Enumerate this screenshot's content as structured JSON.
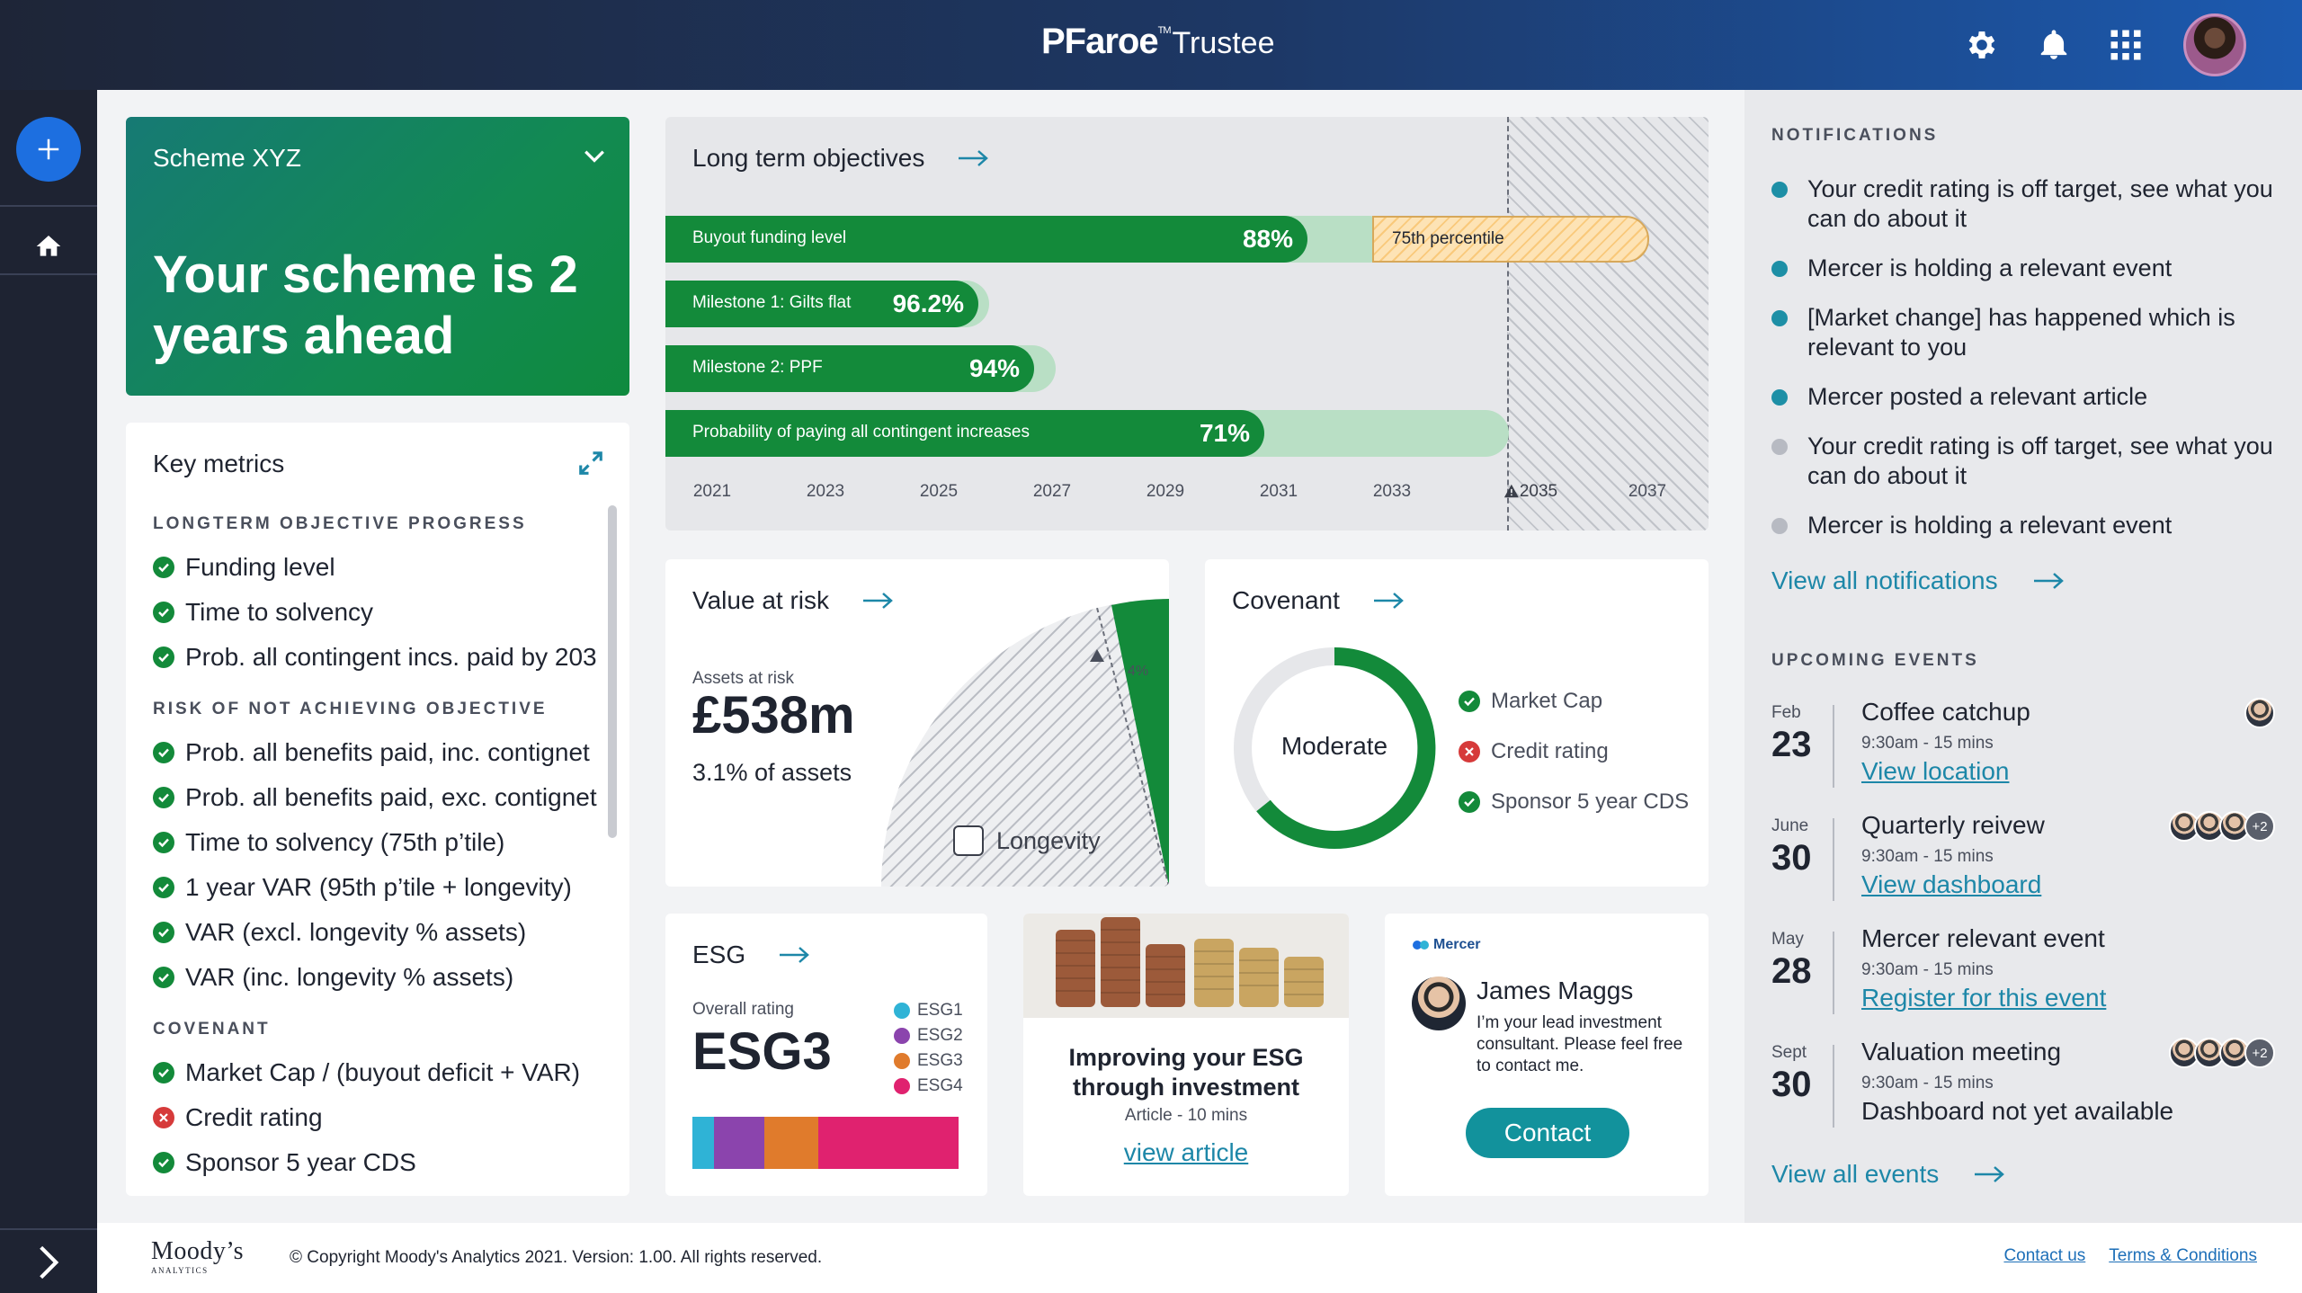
{
  "header": {
    "brand": "PFaroe",
    "brand_tm": "TM",
    "product": "Trustee"
  },
  "scheme": {
    "name": "Scheme XYZ",
    "headline": "Your scheme is 2 years ahead"
  },
  "key_metrics": {
    "title": "Key metrics",
    "sections": [
      {
        "heading": "LONGTERM OBJECTIVE PROGRESS",
        "items": [
          {
            "label": "Funding level",
            "status": "ok"
          },
          {
            "label": "Time to solvency",
            "status": "ok"
          },
          {
            "label": "Prob. all contingent incs. paid by 203",
            "status": "ok"
          }
        ]
      },
      {
        "heading": "RISK OF NOT ACHIEVING OBJECTIVE",
        "items": [
          {
            "label": "Prob. all benefits paid, inc. contignet",
            "status": "ok"
          },
          {
            "label": "Prob. all benefits paid, exc. contignet",
            "status": "ok"
          },
          {
            "label": "Time to solvency (75th p’tile)",
            "status": "ok"
          },
          {
            "label": "1 year VAR (95th p’tile + longevity)",
            "status": "ok"
          },
          {
            "label": "VAR (excl. longevity % assets)",
            "status": "ok"
          },
          {
            "label": "VAR (inc. longevity % assets)",
            "status": "ok"
          }
        ]
      },
      {
        "heading": "COVENANT",
        "items": [
          {
            "label": "Market Cap / (buyout deficit + VAR)",
            "status": "ok"
          },
          {
            "label": "Credit rating",
            "status": "bad"
          },
          {
            "label": "Sponsor 5 year CDS",
            "status": "ok"
          }
        ]
      }
    ]
  },
  "long_term": {
    "title": "Long term objectives",
    "bars": [
      {
        "label": "Buyout funding level",
        "value": "88%"
      },
      {
        "label": "Milestone 1: Gilts flat",
        "value": "96.2%"
      },
      {
        "label": "Milestone 2: PPF",
        "value": "94%"
      },
      {
        "label": "Probability of paying all contingent increases",
        "value": "71%"
      }
    ],
    "percentile_label": "75th percentile",
    "years": [
      "2021",
      "2023",
      "2025",
      "2027",
      "2029",
      "2031",
      "2033",
      "2035",
      "2037"
    ]
  },
  "value_at_risk": {
    "title": "Value at risk",
    "sub": "Assets at risk",
    "amount": "£538m",
    "pct": "3.1% of assets",
    "pie_note": "4%",
    "longevity": "Longevity"
  },
  "covenant": {
    "title": "Covenant",
    "center": "Moderate",
    "items": [
      {
        "label": "Market Cap",
        "status": "ok"
      },
      {
        "label": "Credit rating",
        "status": "bad"
      },
      {
        "label": "Sponsor 5 year CDS",
        "status": "ok"
      }
    ]
  },
  "esg": {
    "title": "ESG",
    "sub": "Overall rating",
    "rating": "ESG3",
    "legend": [
      {
        "label": "ESG1",
        "color": "#2fb3d6"
      },
      {
        "label": "ESG2",
        "color": "#8b44ad"
      },
      {
        "label": "ESG3",
        "color": "#e07b2c"
      },
      {
        "label": "ESG4",
        "color": "#e0226f"
      }
    ]
  },
  "article": {
    "title": "Improving your ESG through investment",
    "meta": "Article - 10 mins",
    "link": "view article"
  },
  "consultant": {
    "brand": "Mercer",
    "name": "James Maggs",
    "text": "I’m your lead investment consultant. Please feel free to contact me.",
    "button": "Contact"
  },
  "notifications": {
    "title": "NOTIFICATIONS",
    "items": [
      {
        "text": "Your credit rating is off target, see what you can do about it",
        "unread": true
      },
      {
        "text": "Mercer is holding a relevant event",
        "unread": true
      },
      {
        "text": "[Market change] has happened which is relevant to you",
        "unread": true
      },
      {
        "text": "Mercer posted a relevant article",
        "unread": true
      },
      {
        "text": "Your credit rating is off target, see what you can do about it",
        "unread": false
      },
      {
        "text": "Mercer is holding a relevant event",
        "unread": false
      }
    ],
    "view_all": "View all notifications"
  },
  "events": {
    "title": "UPCOMING EVENTS",
    "items": [
      {
        "month": "Feb",
        "day": "23",
        "title": "Coffee catchup",
        "time": "9:30am - 15 mins",
        "link": "View location",
        "extra": ""
      },
      {
        "month": "June",
        "day": "30",
        "title": "Quarterly reivew",
        "time": "9:30am - 15 mins",
        "link": "View dashboard",
        "extra": "+2"
      },
      {
        "month": "May",
        "day": "28",
        "title": "Mercer relevant event",
        "time": "9:30am - 15 mins",
        "link": "Register for this event",
        "extra": ""
      },
      {
        "month": "Sept",
        "day": "30",
        "title": "Valuation meeting",
        "time": "9:30am - 15 mins",
        "text": "Dashboard not yet available",
        "extra": "+2"
      }
    ],
    "view_all": "View all events"
  },
  "footer": {
    "logo": "Moody’s",
    "logo_sub": "ANALYTICS",
    "copyright": "© Copyright Moody's Analytics 2021. Version: 1.00.  All rights reserved.",
    "contact": "Contact us",
    "terms": "Terms & Conditions"
  },
  "colors": {
    "accent": "#1d87a8",
    "green": "#138a3a",
    "red": "#d63a3a",
    "nav": "#1e2332"
  }
}
